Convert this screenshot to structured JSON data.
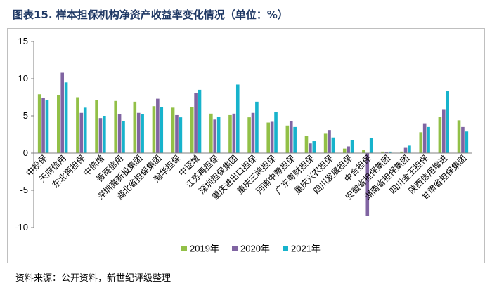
{
  "figure": {
    "title": "图表15. 样本担保机构净资产收益率变化情况（单位：%）",
    "source": "资料来源：公开资料，新世纪评级整理"
  },
  "chart_data": {
    "type": "bar",
    "title": "",
    "xlabel": "",
    "ylabel": "",
    "ylim": [
      -10,
      15
    ],
    "yticks": [
      -10,
      -5,
      0,
      5,
      10,
      15
    ],
    "grid": false,
    "legend_position": "bottom",
    "categories": [
      "中投保",
      "天府信用",
      "东北再担保",
      "中债增",
      "晋商信用",
      "深圳高新投集团",
      "湖北省担保集团",
      "瀚华担保",
      "中证增",
      "江苏再担保",
      "深圳担保集团",
      "重庆进出口担保",
      "重庆三峡担保",
      "河南中豫担保",
      "广东粤财担保",
      "重庆兴农担保",
      "四川发展担保",
      "中合担保",
      "安徽省担保集团",
      "湖南省担保集团",
      "四川金玉担保",
      "陕西信用增进",
      "甘肃省担保集团"
    ],
    "series": [
      {
        "name": "2019年",
        "color": "#92c047",
        "values": [
          7.9,
          7.8,
          7.5,
          7.1,
          7.0,
          6.9,
          6.3,
          6.1,
          6.2,
          5.3,
          5.1,
          4.8,
          4.1,
          3.7,
          2.3,
          2.6,
          0.6,
          0.4,
          0.2,
          0.2,
          2.8,
          4.9,
          4.4
        ]
      },
      {
        "name": "2020年",
        "color": "#8064a2",
        "values": [
          7.4,
          10.8,
          5.4,
          4.7,
          5.2,
          5.4,
          7.3,
          5.1,
          8.1,
          4.5,
          5.3,
          5.4,
          4.2,
          4.3,
          1.3,
          3.1,
          0.9,
          -8.4,
          0.1,
          0.7,
          4.0,
          5.9,
          3.5
        ]
      },
      {
        "name": "2021年",
        "color": "#17b3cc",
        "values": [
          7.1,
          9.5,
          6.1,
          5.0,
          4.3,
          5.2,
          6.2,
          4.8,
          8.5,
          4.9,
          9.2,
          6.9,
          5.5,
          3.5,
          1.6,
          2.1,
          1.7,
          2.0,
          0.2,
          1.0,
          3.5,
          8.3,
          2.9
        ]
      }
    ]
  }
}
